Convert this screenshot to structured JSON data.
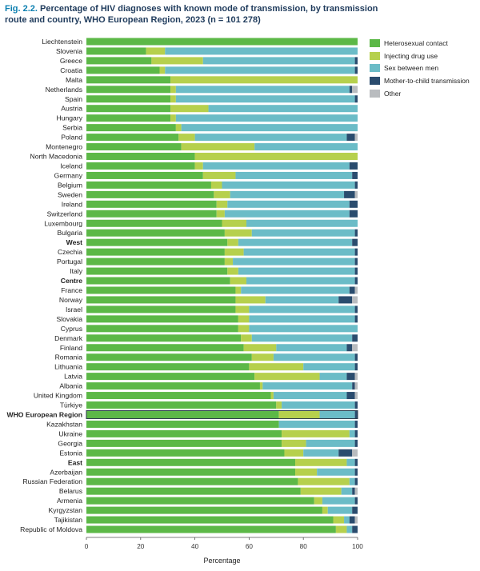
{
  "title": {
    "fig": "Fig. 2.2.",
    "text": "Percentage of HIV diagnoses with known mode of transmission, by transmission route and country, WHO European Region, 2023 (n = 101 278)"
  },
  "chart_data": {
    "type": "bar",
    "orientation": "horizontal",
    "stacked": true,
    "xlabel": "Percentage",
    "xlim": [
      0,
      100
    ],
    "xticks": [
      "0",
      "20",
      "40",
      "60",
      "80",
      "100"
    ],
    "legend_position": "right",
    "colors": {
      "Heterosexual contact": "#5cb847",
      "Injecting drug use": "#b6d04d",
      "Sex between men": "#6bbcc7",
      "Mother-to-child transmission": "#2a4c6e",
      "Other": "#b9bcbf"
    },
    "series_names": [
      "Heterosexual contact",
      "Injecting drug use",
      "Sex between men",
      "Mother-to-child transmission",
      "Other"
    ],
    "bold_categories": [
      "West",
      "Centre",
      "WHO European Region",
      "East"
    ],
    "outlined_categories": [
      "WHO European Region"
    ],
    "categories": [
      "Liechtenstein",
      "Slovenia",
      "Greece",
      "Croatia",
      "Malta",
      "Netherlands",
      "Spain",
      "Austria",
      "Hungary",
      "Serbia",
      "Poland",
      "Montenegro",
      "North Macedonia",
      "Iceland",
      "Germany",
      "Belgium",
      "Sweden",
      "Ireland",
      "Switzerland",
      "Luxembourg",
      "Bulgaria",
      "West",
      "Czechia",
      "Portugal",
      "Italy",
      "Centre",
      "France",
      "Norway",
      "Israel",
      "Slovakia",
      "Cyprus",
      "Denmark",
      "Finland",
      "Romania",
      "Lithuania",
      "Latvia",
      "Albania",
      "United Kingdom",
      "Türkiye",
      "WHO European Region",
      "Kazakhstan",
      "Ukraine",
      "Georgia",
      "Estonia",
      "East",
      "Azerbaijan",
      "Russian Federation",
      "Belarus",
      "Armenia",
      "Kyrgyzstan",
      "Tajikistan",
      "Republic of Moldova"
    ],
    "values": [
      [
        100,
        0,
        0,
        0,
        0
      ],
      [
        22,
        7,
        71,
        0,
        0
      ],
      [
        24,
        19,
        56,
        1,
        0
      ],
      [
        27,
        2,
        70,
        1,
        0
      ],
      [
        31,
        69,
        0,
        0,
        0
      ],
      [
        31,
        2,
        64,
        1,
        2
      ],
      [
        31,
        2,
        66,
        1,
        0
      ],
      [
        31,
        14,
        55,
        0,
        0
      ],
      [
        31,
        2,
        67,
        0,
        0
      ],
      [
        33,
        2,
        65,
        0,
        0
      ],
      [
        34,
        6,
        56,
        3,
        1
      ],
      [
        35,
        27,
        38,
        0,
        0
      ],
      [
        40,
        60,
        0,
        0,
        0
      ],
      [
        40,
        3,
        54,
        3,
        0
      ],
      [
        43,
        12,
        43,
        2,
        0
      ],
      [
        46,
        4,
        49,
        1,
        0
      ],
      [
        47,
        6,
        42,
        4,
        1
      ],
      [
        48,
        4,
        45,
        3,
        0
      ],
      [
        48,
        3,
        46,
        3,
        0
      ],
      [
        50,
        9,
        41,
        0,
        0
      ],
      [
        51,
        10,
        38,
        1,
        0
      ],
      [
        52,
        4,
        42,
        2,
        0
      ],
      [
        51,
        7,
        41,
        1,
        0
      ],
      [
        51,
        3,
        45,
        1,
        0
      ],
      [
        52,
        4,
        43,
        1,
        0
      ],
      [
        53,
        6,
        40,
        1,
        0
      ],
      [
        55,
        2,
        40,
        2,
        1
      ],
      [
        55,
        11,
        27,
        5,
        2
      ],
      [
        55,
        5,
        39,
        1,
        0
      ],
      [
        56,
        4,
        39,
        1,
        0
      ],
      [
        56,
        4,
        40,
        0,
        0
      ],
      [
        57,
        4,
        37,
        2,
        0
      ],
      [
        58,
        12,
        26,
        2,
        2
      ],
      [
        61,
        8,
        30,
        1,
        0
      ],
      [
        60,
        20,
        19,
        1,
        0
      ],
      [
        62,
        24,
        10,
        3,
        1
      ],
      [
        64,
        1,
        33,
        1,
        1
      ],
      [
        68,
        1,
        27,
        3,
        1
      ],
      [
        70,
        2,
        27,
        1,
        0
      ],
      [
        71,
        15,
        13,
        1,
        0
      ],
      [
        71,
        0,
        28,
        1,
        0
      ],
      [
        72,
        25,
        2,
        1,
        0
      ],
      [
        72,
        9,
        18,
        1,
        0
      ],
      [
        73,
        7,
        13,
        5,
        2
      ],
      [
        77,
        19,
        3,
        1,
        0
      ],
      [
        77,
        8,
        14,
        1,
        0
      ],
      [
        78,
        19,
        2,
        1,
        0
      ],
      [
        79,
        15,
        4,
        1,
        1
      ],
      [
        84,
        3,
        12,
        1,
        0
      ],
      [
        87,
        2,
        9,
        2,
        0
      ],
      [
        91,
        4,
        2,
        2,
        1
      ],
      [
        92,
        4,
        2,
        2,
        0
      ]
    ]
  }
}
